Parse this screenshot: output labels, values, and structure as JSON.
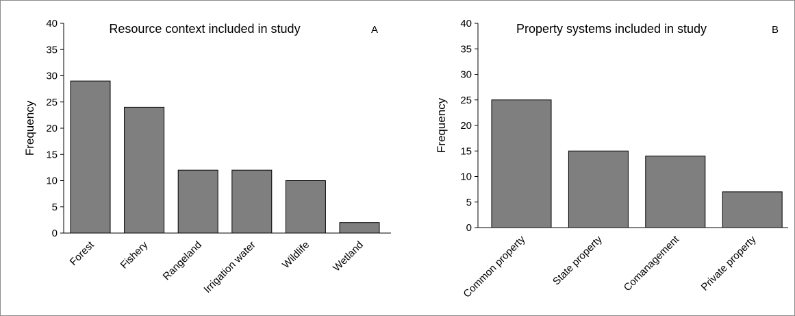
{
  "colors": {
    "bar_fill": "#7f7f7f",
    "bar_stroke": "#000000",
    "axis": "#000000",
    "background": "#ffffff"
  },
  "chart_data": [
    {
      "type": "bar",
      "title": "Resource context included in study",
      "panel_label": "A",
      "ylabel": "Frequency",
      "xlabel": "",
      "ylim": [
        0,
        40
      ],
      "yticks": [
        0,
        5,
        10,
        15,
        20,
        25,
        30,
        35,
        40
      ],
      "categories": [
        "Forest",
        "Fishery",
        "Rangeland",
        "Irrigation water",
        "Wildlife",
        "Wetland"
      ],
      "values": [
        29,
        24,
        12,
        12,
        10,
        2
      ],
      "grid": false,
      "legend": "none"
    },
    {
      "type": "bar",
      "title": "Property systems included in study",
      "panel_label": "B",
      "ylabel": "Frequency",
      "xlabel": "",
      "ylim": [
        0,
        40
      ],
      "yticks": [
        0,
        5,
        10,
        15,
        20,
        25,
        30,
        35,
        40
      ],
      "categories": [
        "Common property",
        "State property",
        "Comanagement",
        "Private property"
      ],
      "values": [
        25,
        15,
        14,
        7
      ],
      "grid": false,
      "legend": "none"
    }
  ]
}
